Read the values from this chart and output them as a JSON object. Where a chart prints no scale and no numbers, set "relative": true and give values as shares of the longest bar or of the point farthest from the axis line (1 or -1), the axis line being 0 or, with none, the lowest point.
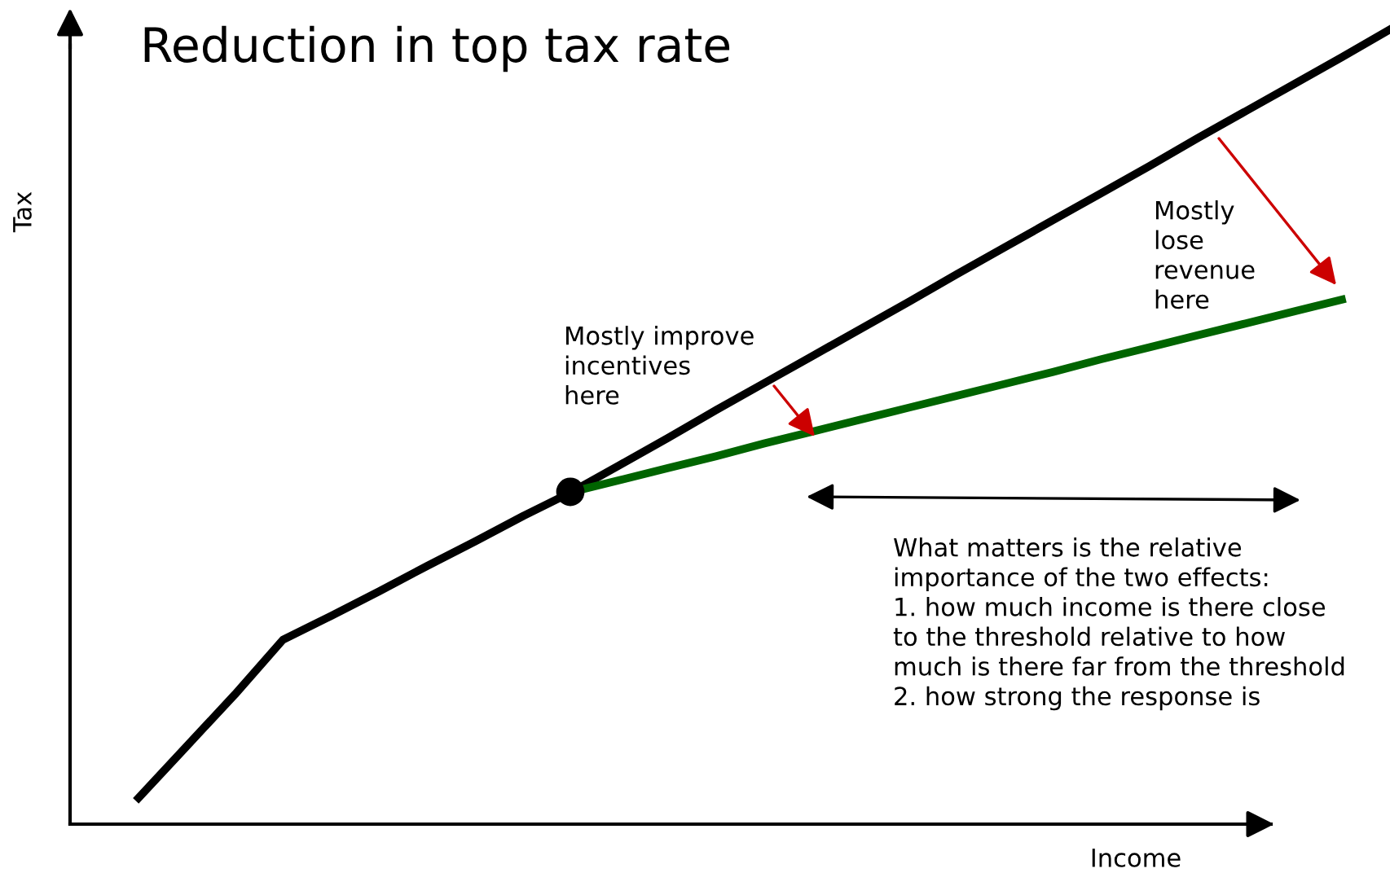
{
  "chart_data": {
    "type": "line",
    "title": "Reduction in top tax rate",
    "xlabel": "Income",
    "ylabel": "Tax",
    "relative": true,
    "marker": "none",
    "line_style": "solid",
    "categories": [
      null,
      null,
      null,
      null,
      null,
      null,
      null,
      null,
      null,
      null,
      null,
      null,
      null,
      null,
      null,
      null,
      null,
      null,
      null,
      null,
      null,
      null,
      null,
      null,
      null,
      null,
      null
    ],
    "series": [
      {
        "color": "#000000",
        "values": [
          0.033,
          0.098,
          0.163,
          0.232,
          0.262,
          0.293,
          0.325,
          0.356,
          0.388,
          0.418,
          0.452,
          0.486,
          0.521,
          0.555,
          0.589,
          0.623,
          0.657,
          0.692,
          0.726,
          0.76,
          0.794,
          0.828,
          0.863,
          0.897,
          0.931,
          0.965,
          1.0
        ]
      },
      {
        "color": "#006400",
        "values": [
          null,
          null,
          null,
          null,
          null,
          null,
          null,
          null,
          null,
          0.418,
          0.433,
          0.448,
          0.463,
          0.479,
          0.494,
          0.509,
          0.524,
          0.539,
          0.554,
          0.569,
          0.585,
          0.6,
          0.615,
          0.63,
          0.645,
          0.66,
          null
        ]
      }
    ],
    "annotations": [
      "Mostly improve\nincentives\nhere",
      "Mostly\nlose\nrevenue\nhere",
      "What matters is the relative\nimportance of the two effects:\n1. how much income is there close\nto the threshold relative to how\nmuch is there far from the threshold\n2. how strong the response is"
    ]
  }
}
